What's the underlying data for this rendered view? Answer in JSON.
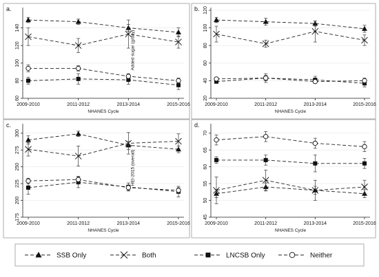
{
  "chart_data": [
    {
      "panel_label": "a.",
      "type": "line",
      "xlabel": "NHANES Cycle",
      "ylabel": "Added sugar (g/day)",
      "categories": [
        "2009-2010",
        "2011-2012",
        "2013-2014",
        "2015-2016"
      ],
      "ylim": [
        60,
        160
      ],
      "yticks": [
        60,
        80,
        100,
        120,
        140
      ],
      "grid": true,
      "series": [
        {
          "name": "SSB Only",
          "values": [
            149,
            147,
            140,
            135
          ],
          "err": [
            3,
            3,
            4,
            5
          ]
        },
        {
          "name": "Both",
          "values": [
            130,
            120,
            133,
            124
          ],
          "err": [
            10,
            8,
            16,
            7
          ]
        },
        {
          "name": "LNCSB Only",
          "values": [
            80,
            82,
            81,
            75
          ],
          "err": [
            4,
            6,
            5,
            5
          ]
        },
        {
          "name": "Neither",
          "values": [
            94,
            94,
            85,
            80
          ],
          "err": [
            4,
            3,
            3,
            3
          ]
        }
      ]
    },
    {
      "panel_label": "b.",
      "type": "line",
      "xlabel": "NHANES Cycle",
      "ylabel": "",
      "categories": [
        "2009-2010",
        "2011-2012",
        "2013-2014",
        "2015-2016"
      ],
      "ylim": [
        20,
        120
      ],
      "yticks": [
        20,
        40,
        60,
        80,
        100,
        120
      ],
      "grid": true,
      "series": [
        {
          "name": "SSB Only",
          "values": [
            109,
            107,
            105,
            99
          ],
          "err": [
            3,
            4,
            3,
            4
          ]
        },
        {
          "name": "Both",
          "values": [
            93,
            82,
            96,
            86
          ],
          "err": [
            9,
            4,
            12,
            6
          ]
        },
        {
          "name": "LNCSB Only",
          "values": [
            39,
            43,
            41,
            37
          ],
          "err": [
            2,
            5,
            4,
            4
          ]
        },
        {
          "name": "Neither",
          "values": [
            42,
            43,
            39,
            40
          ],
          "err": [
            2,
            3,
            2,
            3
          ]
        }
      ]
    },
    {
      "panel_label": "c.",
      "type": "line",
      "xlabel": "NHANES Cycle",
      "ylabel": "HEI-2015 (overall)",
      "categories": [
        "2009-2010",
        "2011-2012",
        "2013-2014",
        "2015-2016"
      ],
      "ylim": [
        175,
        310
      ],
      "yticks": [
        175,
        200,
        225,
        250,
        275,
        300
      ],
      "grid": true,
      "series": [
        {
          "name": "SSB Only",
          "values": [
            290,
            299,
            282,
            276
          ],
          "err": [
            6,
            4,
            6,
            5
          ]
        },
        {
          "name": "Both",
          "values": [
            276,
            266,
            285,
            288
          ],
          "err": [
            10,
            15,
            16,
            11
          ]
        },
        {
          "name": "LNCSB Only",
          "values": [
            219,
            227,
            220,
            213
          ],
          "err": [
            10,
            8,
            6,
            8
          ]
        },
        {
          "name": "Neither",
          "values": [
            229,
            231,
            219,
            215
          ],
          "err": [
            4,
            5,
            4,
            4
          ]
        }
      ]
    },
    {
      "panel_label": "d.",
      "type": "line",
      "xlabel": "NHANES Cycle",
      "ylabel": "",
      "categories": [
        "2009-2010",
        "2011-2012",
        "2013-2014",
        "2015-2016"
      ],
      "ylim": [
        45,
        72
      ],
      "yticks": [
        45,
        50,
        55,
        60,
        65,
        70
      ],
      "grid": true,
      "series": [
        {
          "name": "SSB Only",
          "values": [
            52,
            54,
            53,
            52
          ],
          "err": [
            1.2,
            1.2,
            1.2,
            1.2
          ]
        },
        {
          "name": "Both",
          "values": [
            53,
            56,
            53,
            54
          ],
          "err": [
            4,
            3,
            3,
            2
          ]
        },
        {
          "name": "LNCSB Only",
          "values": [
            62,
            62,
            61,
            61
          ],
          "err": [
            1,
            1.5,
            2.5,
            1.5
          ]
        },
        {
          "name": "Neither",
          "values": [
            68,
            69,
            67,
            66
          ],
          "err": [
            1.5,
            1.5,
            1.5,
            1.5
          ]
        }
      ]
    }
  ],
  "legend": {
    "placement": "bottom",
    "items": [
      {
        "label": "SSB Only",
        "marker": "triangle"
      },
      {
        "label": "Both",
        "marker": "x"
      },
      {
        "label": "LNCSB Only",
        "marker": "square"
      },
      {
        "label": "Neither",
        "marker": "circle"
      }
    ]
  }
}
